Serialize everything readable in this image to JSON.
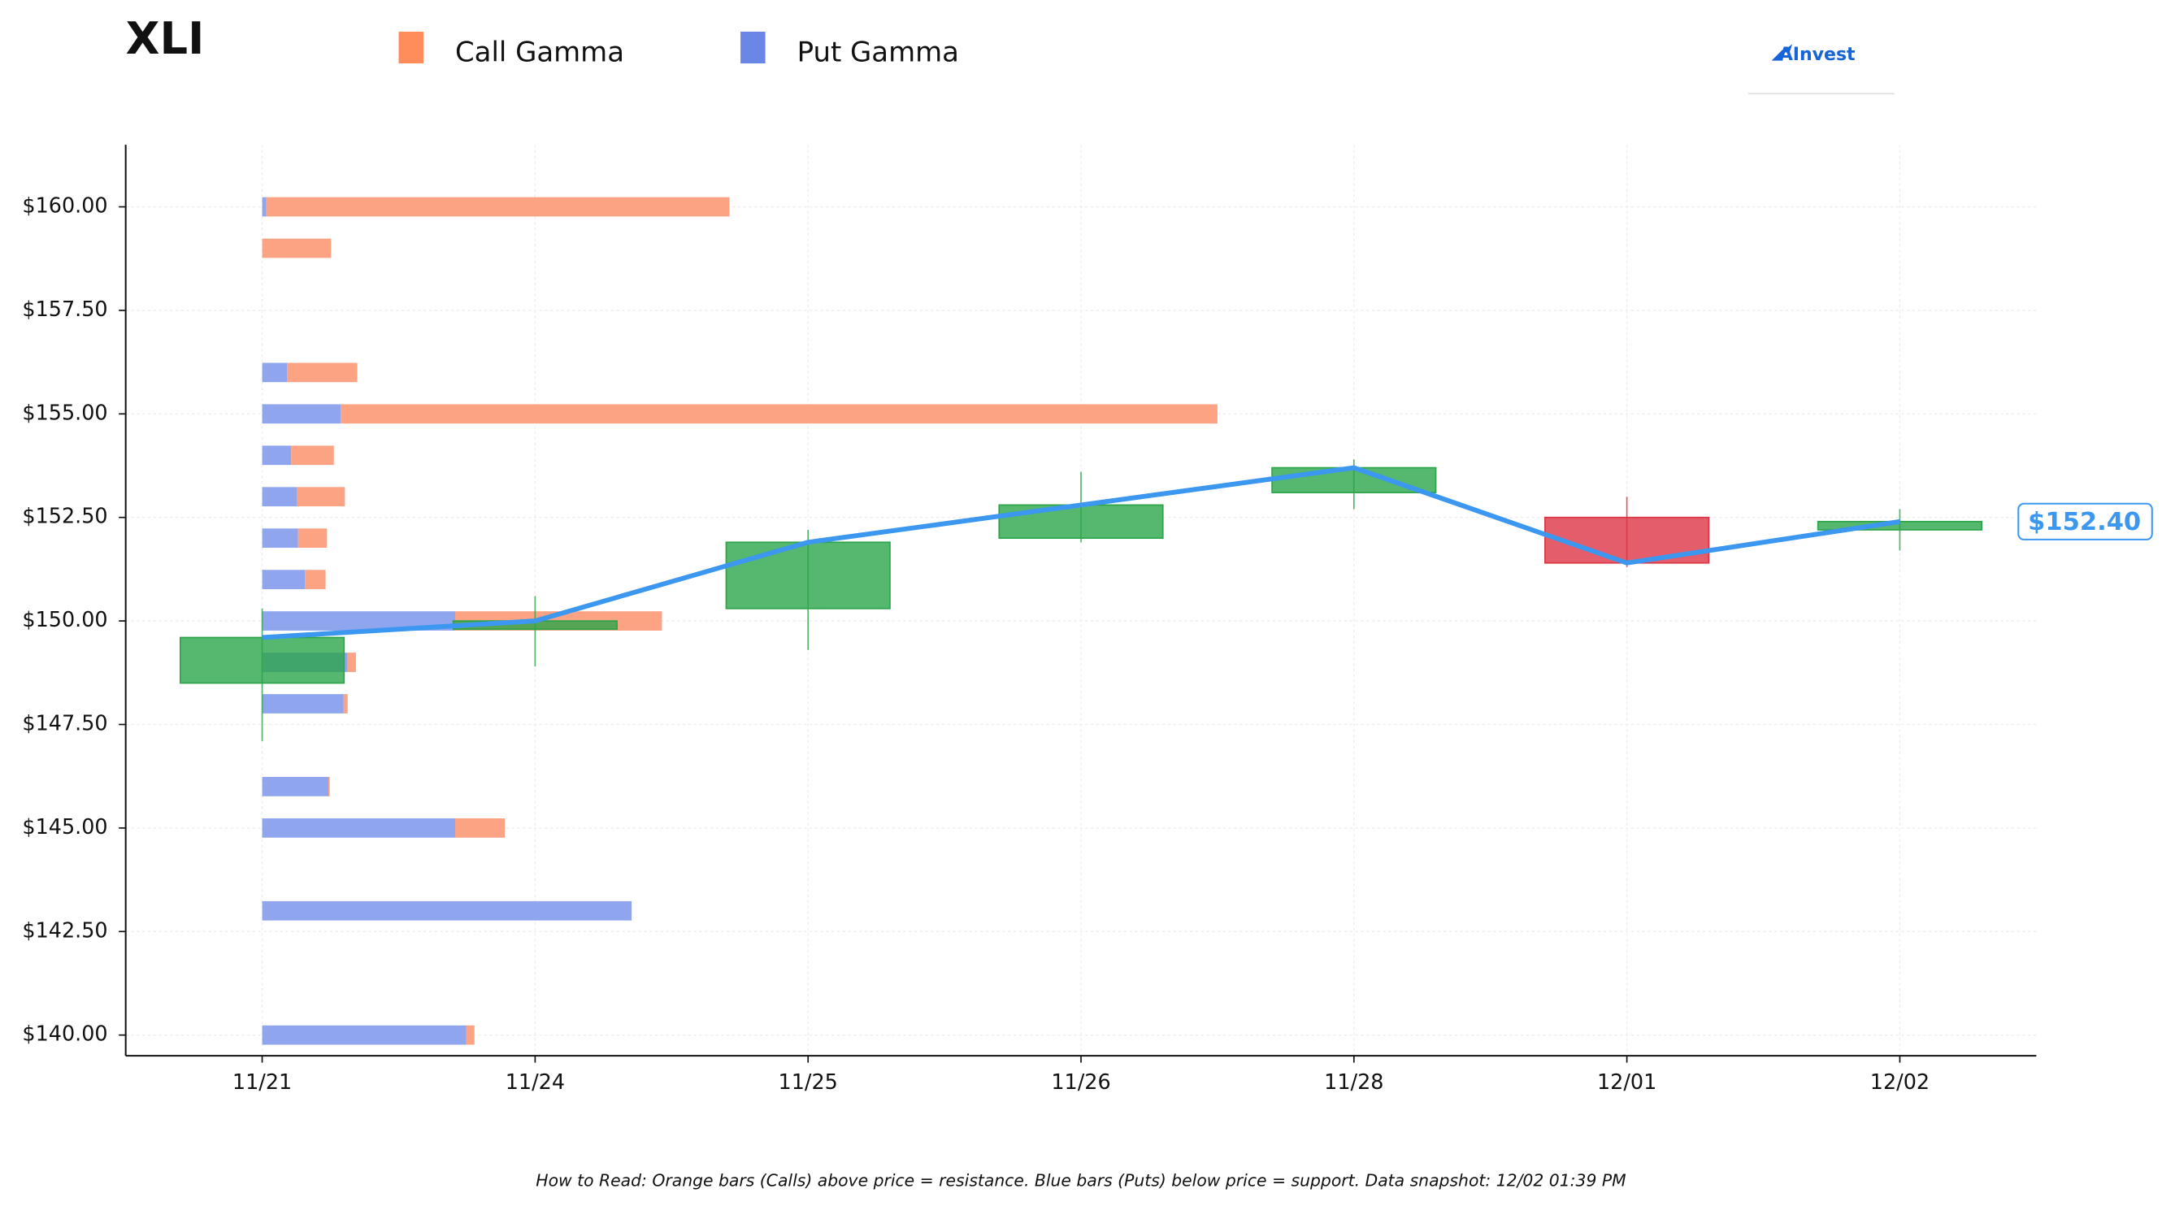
{
  "chart_data": {
    "type": "candlestick",
    "title": "XLI",
    "brand": "AInvest",
    "footnote": "How to Read: Orange bars (Calls) above price = resistance. Blue bars (Puts) below price = support. Data snapshot: 12/02 01:39 PM",
    "categories": [
      "11/21",
      "11/24",
      "11/25",
      "11/26",
      "11/28",
      "12/01",
      "12/02"
    ],
    "open": [
      148.5,
      149.8,
      150.3,
      152.0,
      153.1,
      152.5,
      152.2
    ],
    "high": [
      150.3,
      150.6,
      152.2,
      153.6,
      153.9,
      153.0,
      152.7
    ],
    "low": [
      147.1,
      148.9,
      149.3,
      151.9,
      152.7,
      151.3,
      151.7
    ],
    "close": [
      149.6,
      150.0,
      151.9,
      152.8,
      153.7,
      151.4,
      152.4
    ],
    "up_color": "#2ca54a",
    "down_color": "#dc3545",
    "line_color": "#3b97f0",
    "ylim": [
      139.5,
      161.5
    ],
    "yticks": [
      {
        "value": 140,
        "label": "$140.00"
      },
      {
        "value": 142.5,
        "label": "$142.50"
      },
      {
        "value": 145,
        "label": "$145.00"
      },
      {
        "value": 147.5,
        "label": "$147.50"
      },
      {
        "value": 150,
        "label": "$150.00"
      },
      {
        "value": 152.5,
        "label": "$152.50"
      },
      {
        "value": 155,
        "label": "$155.00"
      },
      {
        "value": 157.5,
        "label": "$157.50"
      },
      {
        "value": 160,
        "label": "$160.00"
      }
    ],
    "grid": true,
    "last_price": 152.4,
    "last_price_label": "$152.40",
    "gamma": {
      "strikes": [
        160,
        159,
        156,
        155,
        154,
        153,
        152,
        151,
        150,
        149,
        148,
        146,
        145,
        143,
        140
      ],
      "series": [
        {
          "name": "Call Gamma",
          "color": "#ff8c5a",
          "bar_color": "#fca383",
          "values": [
            336,
            50,
            51,
            636,
            31,
            35,
            21,
            15,
            150,
            6,
            3,
            1,
            36,
            0,
            6
          ]
        },
        {
          "name": "Put Gamma",
          "color": "#6a86e6",
          "bar_color": "#8fa5ee",
          "values": [
            3,
            0,
            18,
            57,
            21,
            25,
            26,
            31,
            140,
            62,
            59,
            48,
            140,
            268,
            148
          ]
        }
      ]
    }
  }
}
